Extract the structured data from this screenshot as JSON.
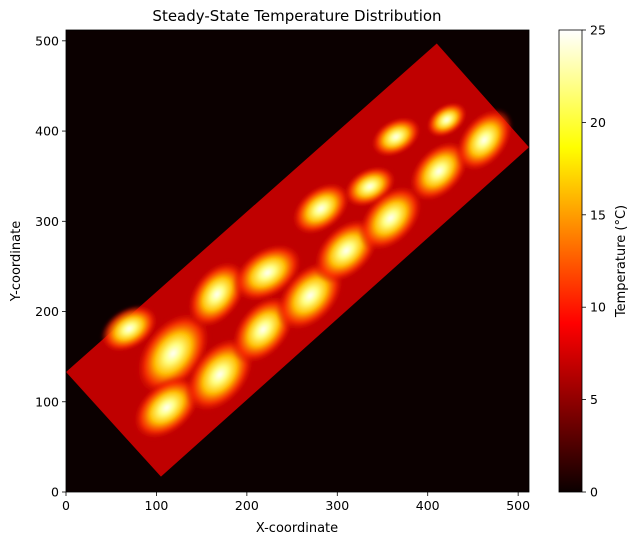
{
  "chart_data": {
    "type": "heatmap",
    "title": "Steady-State Temperature Distribution",
    "xlabel": "X-coordinate",
    "ylabel": "Y-coordinate",
    "xlim": [
      0,
      512
    ],
    "ylim": [
      0,
      512
    ],
    "x_ticks": [
      0,
      100,
      200,
      300,
      400,
      500
    ],
    "y_ticks": [
      0,
      100,
      200,
      300,
      400,
      500
    ],
    "colorbar": {
      "label": "Temperature (°C)",
      "colormap": "hot",
      "range": [
        0,
        25
      ],
      "ticks": [
        0,
        5,
        10,
        15,
        20,
        25
      ]
    },
    "background_value": 0,
    "slab": {
      "corners": [
        [
          0,
          133
        ],
        [
          410,
          497
        ],
        [
          512,
          382
        ],
        [
          105,
          17
        ]
      ],
      "base_value": 5
    },
    "hot_zones": [
      {
        "x1": 88,
        "y1": 192,
        "x2": 52,
        "y2": 170
      },
      {
        "x1": 140,
        "y1": 182,
        "x2": 97,
        "y2": 125
      },
      {
        "x1": 183,
        "y1": 241,
        "x2": 151,
        "y2": 197
      },
      {
        "x1": 246,
        "y1": 258,
        "x2": 200,
        "y2": 228
      },
      {
        "x1": 300,
        "y1": 328,
        "x2": 264,
        "y2": 300
      },
      {
        "x1": 352,
        "y1": 347,
        "x2": 320,
        "y2": 330
      },
      {
        "x1": 380,
        "y1": 402,
        "x2": 350,
        "y2": 385
      },
      {
        "x1": 432,
        "y1": 420,
        "x2": 410,
        "y2": 405
      },
      {
        "x1": 133,
        "y1": 112,
        "x2": 90,
        "y2": 75
      },
      {
        "x1": 190,
        "y1": 155,
        "x2": 150,
        "y2": 105
      },
      {
        "x1": 236,
        "y1": 202,
        "x2": 200,
        "y2": 158
      },
      {
        "x1": 290,
        "y1": 240,
        "x2": 250,
        "y2": 195
      },
      {
        "x1": 330,
        "y1": 287,
        "x2": 290,
        "y2": 248
      },
      {
        "x1": 378,
        "y1": 324,
        "x2": 340,
        "y2": 283
      },
      {
        "x1": 430,
        "y1": 374,
        "x2": 395,
        "y2": 337
      },
      {
        "x1": 478,
        "y1": 410,
        "x2": 447,
        "y2": 370
      }
    ]
  }
}
